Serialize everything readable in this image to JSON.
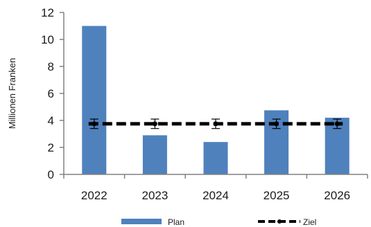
{
  "chart_data": {
    "type": "bar",
    "categories": [
      "2022",
      "2023",
      "2024",
      "2025",
      "2026"
    ],
    "series": [
      {
        "name": "Plan",
        "type": "bar",
        "values": [
          11.0,
          2.9,
          2.4,
          4.75,
          4.2
        ],
        "color": "#4f81bd"
      },
      {
        "name": "Ziel",
        "type": "line",
        "style": "dashed",
        "values": [
          3.75,
          3.75,
          3.75,
          3.75,
          3.75
        ],
        "error": [
          0.35,
          0.35,
          0.35,
          0.35,
          0.35
        ],
        "color": "#000000"
      }
    ],
    "ylabel": "Millionen Franken",
    "xlabel": "",
    "ylim": [
      0,
      12
    ],
    "yticks": [
      "0",
      "2",
      "4",
      "6",
      "8",
      "10",
      "12"
    ],
    "grid": false,
    "legend_position": "bottom"
  }
}
